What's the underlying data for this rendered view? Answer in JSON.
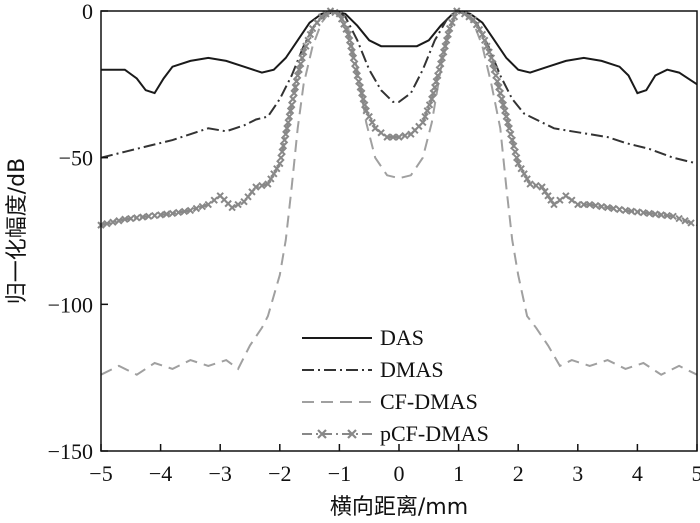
{
  "chart_data": {
    "type": "line",
    "title": "",
    "xlabel": "横向距离/mm",
    "ylabel": "归一化幅度/dB",
    "xlim": [
      -5,
      5
    ],
    "ylim": [
      -150,
      0
    ],
    "xticks": [
      -5,
      -4,
      -3,
      -2,
      -1,
      0,
      1,
      2,
      3,
      4,
      5
    ],
    "yticks": [
      0,
      -50,
      -100,
      -150
    ],
    "grid": false,
    "legend_position": "bottom-center",
    "series": [
      {
        "name": "DAS",
        "color": "#1a1a1a",
        "dash": "solid",
        "marker": "none",
        "points": [
          [
            -5,
            -20
          ],
          [
            -4.6,
            -20
          ],
          [
            -4.4,
            -23
          ],
          [
            -4.25,
            -27
          ],
          [
            -4.1,
            -28
          ],
          [
            -3.95,
            -23
          ],
          [
            -3.8,
            -19
          ],
          [
            -3.5,
            -17
          ],
          [
            -3.2,
            -16
          ],
          [
            -2.9,
            -17
          ],
          [
            -2.6,
            -19
          ],
          [
            -2.3,
            -21
          ],
          [
            -2.1,
            -20
          ],
          [
            -1.9,
            -16
          ],
          [
            -1.7,
            -10
          ],
          [
            -1.5,
            -4
          ],
          [
            -1.3,
            -1
          ],
          [
            -1.1,
            0
          ],
          [
            -0.9,
            -1
          ],
          [
            -0.7,
            -5
          ],
          [
            -0.5,
            -10
          ],
          [
            -0.3,
            -12
          ],
          [
            0,
            -12
          ],
          [
            0.3,
            -12
          ],
          [
            0.5,
            -10
          ],
          [
            0.7,
            -5
          ],
          [
            0.9,
            -1
          ],
          [
            1.0,
            0
          ],
          [
            1.2,
            -1
          ],
          [
            1.4,
            -4
          ],
          [
            1.6,
            -10
          ],
          [
            1.8,
            -16
          ],
          [
            2.0,
            -20
          ],
          [
            2.2,
            -21
          ],
          [
            2.5,
            -19
          ],
          [
            2.8,
            -17
          ],
          [
            3.1,
            -16
          ],
          [
            3.4,
            -17
          ],
          [
            3.7,
            -19
          ],
          [
            3.85,
            -22
          ],
          [
            4.0,
            -28
          ],
          [
            4.15,
            -27
          ],
          [
            4.3,
            -22
          ],
          [
            4.5,
            -20
          ],
          [
            4.7,
            -21
          ],
          [
            5,
            -25
          ]
        ]
      },
      {
        "name": "DMAS",
        "color": "#333333",
        "dash": "12,4,2,4",
        "marker": "none",
        "points": [
          [
            -5,
            -50
          ],
          [
            -4.6,
            -48
          ],
          [
            -4.2,
            -46
          ],
          [
            -3.8,
            -44
          ],
          [
            -3.5,
            -42
          ],
          [
            -3.2,
            -40
          ],
          [
            -2.9,
            -41
          ],
          [
            -2.6,
            -39
          ],
          [
            -2.4,
            -37
          ],
          [
            -2.2,
            -36
          ],
          [
            -2.0,
            -30
          ],
          [
            -1.8,
            -22
          ],
          [
            -1.6,
            -12
          ],
          [
            -1.4,
            -4
          ],
          [
            -1.2,
            -1
          ],
          [
            -1.05,
            0
          ],
          [
            -0.9,
            -2
          ],
          [
            -0.7,
            -10
          ],
          [
            -0.5,
            -20
          ],
          [
            -0.3,
            -27
          ],
          [
            -0.1,
            -31
          ],
          [
            0,
            -31
          ],
          [
            0.2,
            -28
          ],
          [
            0.4,
            -20
          ],
          [
            0.6,
            -10
          ],
          [
            0.8,
            -3
          ],
          [
            0.95,
            0
          ],
          [
            1.1,
            -1
          ],
          [
            1.3,
            -4
          ],
          [
            1.5,
            -12
          ],
          [
            1.7,
            -22
          ],
          [
            1.9,
            -30
          ],
          [
            2.1,
            -35
          ],
          [
            2.3,
            -37
          ],
          [
            2.6,
            -40
          ],
          [
            2.9,
            -41
          ],
          [
            3.2,
            -42
          ],
          [
            3.5,
            -43
          ],
          [
            3.8,
            -45
          ],
          [
            4.2,
            -47
          ],
          [
            4.6,
            -50
          ],
          [
            5,
            -52
          ]
        ]
      },
      {
        "name": "CF-DMAS",
        "color": "#a0a0a0",
        "dash": "12,7",
        "marker": "none",
        "points": [
          [
            -5,
            -124
          ],
          [
            -4.7,
            -121
          ],
          [
            -4.4,
            -124
          ],
          [
            -4.1,
            -120
          ],
          [
            -3.8,
            -122
          ],
          [
            -3.5,
            -119
          ],
          [
            -3.2,
            -121
          ],
          [
            -2.9,
            -119
          ],
          [
            -2.7,
            -122
          ],
          [
            -2.5,
            -114
          ],
          [
            -2.3,
            -108
          ],
          [
            -2.2,
            -104
          ],
          [
            -2.0,
            -90
          ],
          [
            -1.9,
            -78
          ],
          [
            -1.8,
            -60
          ],
          [
            -1.7,
            -40
          ],
          [
            -1.6,
            -25
          ],
          [
            -1.45,
            -12
          ],
          [
            -1.3,
            -4
          ],
          [
            -1.15,
            0
          ],
          [
            -1.0,
            -1
          ],
          [
            -0.85,
            -6
          ],
          [
            -0.7,
            -20
          ],
          [
            -0.55,
            -38
          ],
          [
            -0.4,
            -50
          ],
          [
            -0.2,
            -56
          ],
          [
            0,
            -57
          ],
          [
            0.2,
            -56
          ],
          [
            0.4,
            -50
          ],
          [
            0.55,
            -38
          ],
          [
            0.7,
            -20
          ],
          [
            0.85,
            -6
          ],
          [
            0.97,
            0
          ],
          [
            1.1,
            -1
          ],
          [
            1.25,
            -4
          ],
          [
            1.4,
            -12
          ],
          [
            1.55,
            -25
          ],
          [
            1.7,
            -40
          ],
          [
            1.8,
            -60
          ],
          [
            1.9,
            -78
          ],
          [
            2.0,
            -90
          ],
          [
            2.15,
            -104
          ],
          [
            2.3,
            -108
          ],
          [
            2.5,
            -114
          ],
          [
            2.7,
            -121
          ],
          [
            2.9,
            -119
          ],
          [
            3.2,
            -121
          ],
          [
            3.5,
            -119
          ],
          [
            3.8,
            -122
          ],
          [
            4.1,
            -120
          ],
          [
            4.4,
            -124
          ],
          [
            4.7,
            -121
          ],
          [
            5,
            -124
          ]
        ]
      },
      {
        "name": "pCF-DMAS",
        "color": "#888888",
        "dash": "10,4,2,4",
        "marker": "x",
        "points": [
          [
            -5,
            -73
          ],
          [
            -4.6,
            -71
          ],
          [
            -4.2,
            -70
          ],
          [
            -3.8,
            -69
          ],
          [
            -3.5,
            -68
          ],
          [
            -3.2,
            -66
          ],
          [
            -3.0,
            -63
          ],
          [
            -2.8,
            -67
          ],
          [
            -2.6,
            -65
          ],
          [
            -2.4,
            -60
          ],
          [
            -2.2,
            -59
          ],
          [
            -2.0,
            -52
          ],
          [
            -1.9,
            -42
          ],
          [
            -1.8,
            -32
          ],
          [
            -1.7,
            -22
          ],
          [
            -1.6,
            -14
          ],
          [
            -1.45,
            -6
          ],
          [
            -1.3,
            -2
          ],
          [
            -1.15,
            0
          ],
          [
            -1.0,
            -1
          ],
          [
            -0.85,
            -8
          ],
          [
            -0.7,
            -22
          ],
          [
            -0.55,
            -34
          ],
          [
            -0.4,
            -40
          ],
          [
            -0.2,
            -43
          ],
          [
            0,
            -43
          ],
          [
            0.2,
            -42
          ],
          [
            0.4,
            -38
          ],
          [
            0.55,
            -30
          ],
          [
            0.7,
            -18
          ],
          [
            0.85,
            -6
          ],
          [
            0.97,
            0
          ],
          [
            1.1,
            -1
          ],
          [
            1.25,
            -3
          ],
          [
            1.4,
            -8
          ],
          [
            1.55,
            -16
          ],
          [
            1.7,
            -28
          ],
          [
            1.85,
            -40
          ],
          [
            2.0,
            -52
          ],
          [
            2.2,
            -59
          ],
          [
            2.4,
            -60
          ],
          [
            2.6,
            -66
          ],
          [
            2.8,
            -63
          ],
          [
            3.0,
            -66
          ],
          [
            3.2,
            -66
          ],
          [
            3.5,
            -67
          ],
          [
            3.8,
            -68
          ],
          [
            4.2,
            -69
          ],
          [
            4.6,
            -70
          ],
          [
            5,
            -73
          ]
        ]
      }
    ]
  }
}
